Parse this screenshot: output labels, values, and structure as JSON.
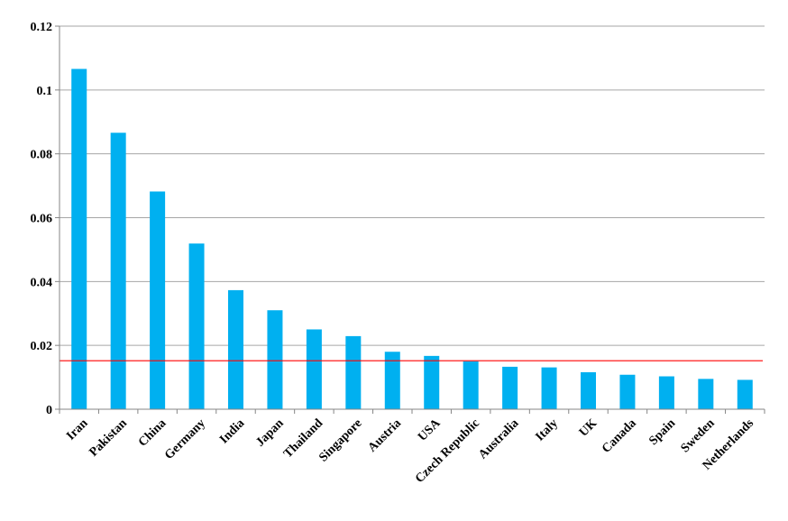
{
  "chart_data": {
    "type": "bar",
    "title": "",
    "xlabel": "",
    "ylabel": "",
    "ylim": [
      0,
      0.12
    ],
    "yticks": [
      0,
      0.02,
      0.04,
      0.06,
      0.08,
      0.1,
      0.12
    ],
    "ytick_labels": [
      "0",
      "0.02",
      "0.04",
      "0.06",
      "0.08",
      "0.1",
      "0.12"
    ],
    "grid": true,
    "categories": [
      "Iran",
      "Pakistan",
      "China",
      "Germany",
      "India",
      "Japan",
      "Thailand",
      "Singapore",
      "Austria",
      "USA",
      "Czech Republic",
      "Australia",
      "Italy",
      "UK",
      "Canada",
      "Spain",
      "Sweden",
      "Netherlands"
    ],
    "values": [
      0.1066,
      0.0866,
      0.0682,
      0.0519,
      0.0373,
      0.031,
      0.025,
      0.0229,
      0.018,
      0.0167,
      0.015,
      0.0133,
      0.0131,
      0.0116,
      0.0108,
      0.0103,
      0.0095,
      0.0092
    ],
    "reference_line": 0.0152,
    "colors": {
      "bar": "#00b0f0",
      "reference_line": "#ff0000",
      "grid": "#a6a6a6",
      "axis": "#868686"
    }
  }
}
